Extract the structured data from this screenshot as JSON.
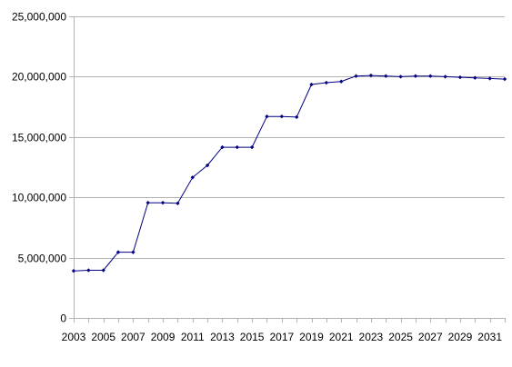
{
  "chart_data": {
    "type": "line",
    "title": "",
    "xlabel": "",
    "ylabel": "",
    "x": [
      2003,
      2004,
      2005,
      2006,
      2007,
      2008,
      2009,
      2010,
      2011,
      2012,
      2013,
      2014,
      2015,
      2016,
      2017,
      2018,
      2019,
      2020,
      2021,
      2022,
      2023,
      2024,
      2025,
      2026,
      2027,
      2028,
      2029,
      2030,
      2031,
      2032
    ],
    "series": [
      {
        "values": [
          3900000,
          3950000,
          3950000,
          5450000,
          5450000,
          9550000,
          9550000,
          9500000,
          11650000,
          12650000,
          14150000,
          14150000,
          14150000,
          16700000,
          16700000,
          16650000,
          19350000,
          19500000,
          19600000,
          20050000,
          20100000,
          20050000,
          20000000,
          20050000,
          20050000,
          20000000,
          19950000,
          19900000,
          19850000,
          19800000
        ]
      }
    ],
    "x_tick_labels": [
      "2003",
      "2005",
      "2007",
      "2009",
      "2011",
      "2013",
      "2015",
      "2017",
      "2019",
      "2021",
      "2023",
      "2025",
      "2027",
      "2029",
      "2031"
    ],
    "y_tick_labels": [
      "0",
      "5,000,000",
      "10,000,000",
      "15,000,000",
      "20,000,000",
      "25,000,000"
    ],
    "y_ticks": [
      0,
      5000000,
      10000000,
      15000000,
      20000000,
      25000000
    ],
    "ylim": [
      0,
      25000000
    ],
    "xlim": [
      2003,
      2032
    ],
    "grid": "horizontal",
    "legend": "none",
    "colors": {
      "line": "#000080",
      "marker": "#000080",
      "grid": "#b3b3b3",
      "axis": "#b3b3b3",
      "text": "#000000"
    }
  }
}
